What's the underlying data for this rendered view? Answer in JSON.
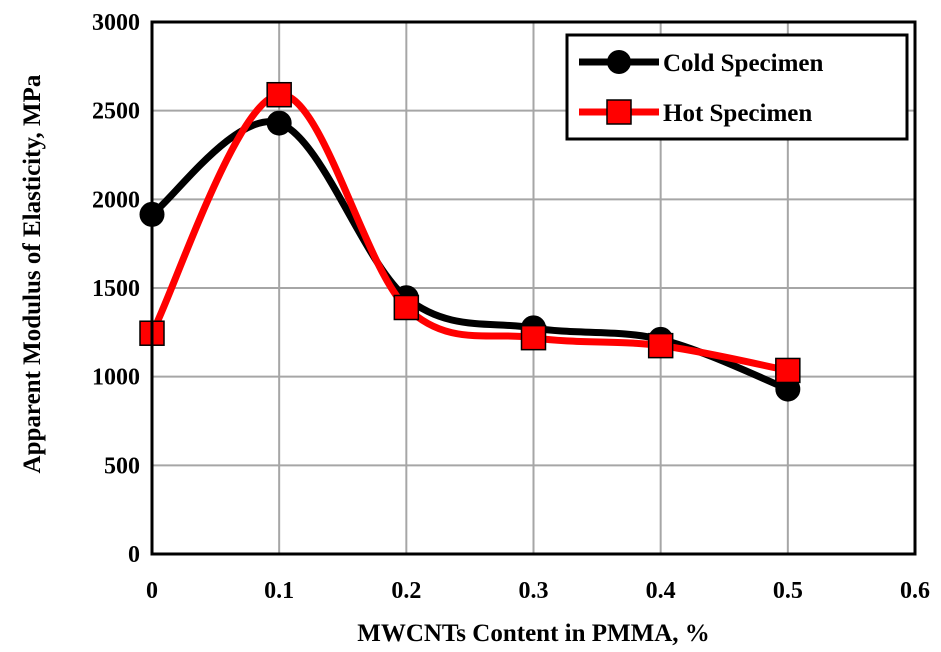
{
  "chart_data": {
    "type": "line",
    "xlabel": "MWCNTs Content in PMMA, %",
    "ylabel": "Apparent Modulus of Elasticity, MPa",
    "xlim": [
      0,
      0.6
    ],
    "ylim": [
      0,
      3000
    ],
    "x_ticks": [
      "0",
      "0.1",
      "0.2",
      "0.3",
      "0.4",
      "0.5",
      "0.6"
    ],
    "y_ticks": [
      "0",
      "500",
      "1000",
      "1500",
      "2000",
      "2500",
      "3000"
    ],
    "grid": true,
    "smooth": true,
    "legend_position": "top-right",
    "series": [
      {
        "name": "Cold Specimen",
        "color": "#000000",
        "marker": "circle",
        "x": [
          0,
          0.1,
          0.2,
          0.3,
          0.4,
          0.5
        ],
        "y": [
          1915,
          2430,
          1445,
          1275,
          1210,
          930
        ]
      },
      {
        "name": "Hot Specimen",
        "color": "#ff0000",
        "marker": "square",
        "x": [
          0,
          0.1,
          0.2,
          0.3,
          0.4,
          0.5
        ],
        "y": [
          1245,
          2590,
          1390,
          1220,
          1175,
          1035
        ]
      }
    ]
  }
}
